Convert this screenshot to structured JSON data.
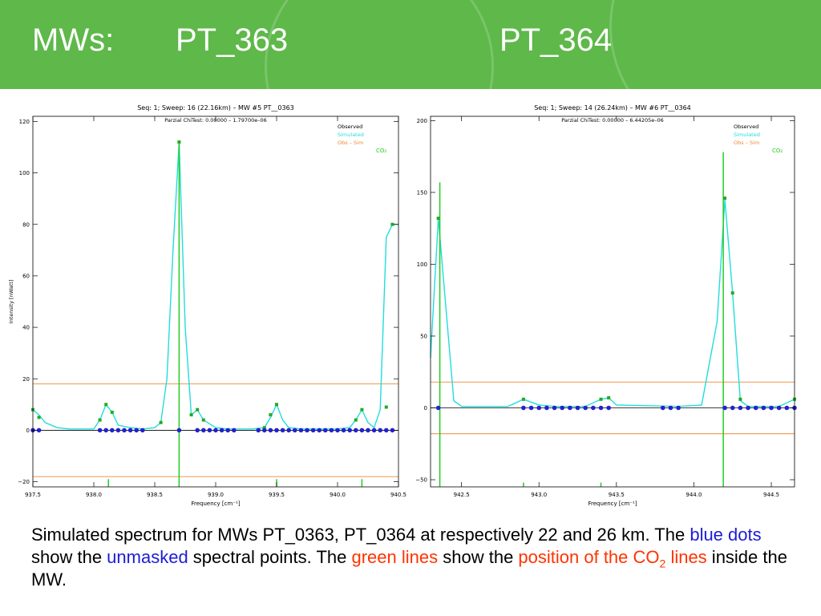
{
  "header": {
    "title_label": "MWs:",
    "title_left": "PT_363",
    "title_right": "PT_364",
    "background": "#5eb84a"
  },
  "caption": {
    "part1": "Simulated spectrum for MWs PT_0363, PT_0364 at respectively 22 and 26 km. The ",
    "blue_dots": "blue dots",
    "part2": " show the ",
    "unmasked": "unmasked",
    "part3": " spectral points. The ",
    "green_lines": "green lines",
    "part4": " show the ",
    "position_of_the": "position of the CO",
    "sub2": "2",
    "lines": " lines",
    "part5": " inside the MW."
  },
  "chart_data": [
    {
      "type": "line",
      "title": "Seq: 1; Sweep: 16 (22.16km) – MW #5  PT__0363",
      "subtitle": "Parzial ChiTest: 0.00000 – 1.79700e–06",
      "xlabel": "Frequency [cm⁻¹]",
      "ylabel": "Intensity [nWatt]",
      "xlim": [
        937.5,
        940.5
      ],
      "ylim": [
        -22,
        122
      ],
      "xticks": [
        937.5,
        938.0,
        938.5,
        939.0,
        939.5,
        940.0,
        940.5
      ],
      "xtick_labels": [
        "937.5",
        "938.0",
        "938.5",
        "939.0",
        "939.5",
        "940.0",
        "940.5"
      ],
      "yticks": [
        -20,
        0,
        20,
        40,
        60,
        80,
        100,
        120
      ],
      "ytick_labels": [
        "−20",
        "0",
        "20",
        "40",
        "60",
        "80",
        "100",
        "120"
      ],
      "legend": [
        "Observed",
        "Simulated",
        "Obs – Sim",
        "CO₂"
      ],
      "legend_position": "top-right",
      "colors": {
        "observed": "#22aa22",
        "simulated": "#22dddd",
        "diff": "#ee8833",
        "unmasked": "#2222cc",
        "co2": "#22cc22"
      },
      "hlines": [
        18,
        -18
      ],
      "simulated": {
        "x": [
          937.5,
          937.55,
          937.6,
          937.7,
          937.8,
          937.9,
          938.0,
          938.05,
          938.1,
          938.15,
          938.2,
          938.3,
          938.4,
          938.5,
          938.55,
          938.6,
          938.65,
          938.7,
          938.75,
          938.8,
          938.85,
          938.9,
          939.0,
          939.1,
          939.2,
          939.3,
          939.4,
          939.45,
          939.5,
          939.55,
          939.6,
          939.7,
          939.8,
          939.9,
          940.0,
          940.1,
          940.15,
          940.2,
          940.25,
          940.3,
          940.35,
          940.4,
          940.45,
          940.5
        ],
        "y": [
          8,
          6,
          3,
          1,
          0.5,
          0.5,
          0.5,
          4,
          10,
          7,
          2,
          1,
          0.5,
          1,
          3,
          20,
          70,
          112,
          40,
          6,
          8,
          4,
          1,
          0.5,
          0.5,
          0.5,
          1,
          5,
          10,
          4,
          1,
          0.5,
          0.5,
          0.5,
          0.5,
          1,
          4,
          8,
          3,
          1,
          8,
          75,
          80,
          80
        ]
      },
      "observed_markers": {
        "x": [
          937.5,
          937.55,
          938.05,
          938.1,
          938.15,
          938.55,
          938.7,
          938.8,
          938.85,
          938.9,
          939.4,
          939.45,
          939.5,
          940.15,
          940.2,
          940.4,
          940.45
        ],
        "y": [
          8,
          5,
          4,
          10,
          7,
          3,
          112,
          6,
          8,
          4,
          1,
          6,
          10,
          4,
          8,
          9,
          80
        ]
      },
      "unmasked_points": {
        "x": [
          937.5,
          937.55,
          938.05,
          938.1,
          938.15,
          938.2,
          938.25,
          938.3,
          938.35,
          938.4,
          938.7,
          938.85,
          938.9,
          938.95,
          939.0,
          939.05,
          939.1,
          939.15,
          939.35,
          939.4,
          939.45,
          939.5,
          939.55,
          939.6,
          939.65,
          939.7,
          939.75,
          939.8,
          939.85,
          939.9,
          939.95,
          940.0,
          940.05,
          940.1,
          940.15,
          940.2,
          940.25,
          940.3,
          940.35,
          940.4,
          940.45
        ],
        "y": [
          0,
          0,
          0,
          0,
          0,
          0,
          0,
          0,
          0,
          0,
          0,
          0,
          0,
          0,
          0,
          0,
          0,
          0,
          0,
          0,
          0,
          0,
          0,
          0,
          0,
          0,
          0,
          0,
          0,
          0,
          0,
          0,
          0,
          0,
          0,
          0,
          0,
          0,
          0,
          0,
          0
        ]
      },
      "co2_lines": [
        {
          "x": 938.7,
          "ymin": -22,
          "ymax": 112
        },
        {
          "x": 938.12,
          "ymin": -22,
          "ymax": -19
        },
        {
          "x": 939.5,
          "ymin": -22,
          "ymax": -19
        },
        {
          "x": 940.2,
          "ymin": -22,
          "ymax": -19
        }
      ]
    },
    {
      "type": "line",
      "title": "Seq: 1; Sweep: 14 (26.24km) – MW #6  PT__0364",
      "subtitle": "Parzial ChiTest: 0.00000 – 6.44205e–06",
      "xlabel": "Frequency [cm⁻¹]",
      "ylabel": "",
      "xlim": [
        942.3,
        944.65
      ],
      "ylim": [
        -55,
        203
      ],
      "xticks": [
        942.5,
        943.0,
        943.5,
        944.0,
        944.5
      ],
      "xtick_labels": [
        "942.5",
        "943.0",
        "943.5",
        "944.0",
        "944.5"
      ],
      "yticks": [
        -50,
        0,
        50,
        100,
        150,
        200
      ],
      "ytick_labels": [
        "−50",
        "0",
        "50",
        "100",
        "150",
        "200"
      ],
      "legend": [
        "Observed",
        "Simulated",
        "Obs – Sim",
        "CO₂"
      ],
      "legend_position": "top-right",
      "colors": {
        "observed": "#22aa22",
        "simulated": "#22dddd",
        "diff": "#ee8833",
        "unmasked": "#2222cc",
        "co2": "#22cc22"
      },
      "hlines": [
        18,
        -18
      ],
      "simulated": {
        "x": [
          942.3,
          942.35,
          942.45,
          942.5,
          942.8,
          942.9,
          943.0,
          943.1,
          943.3,
          943.4,
          943.45,
          943.5,
          943.9,
          944.05,
          944.15,
          944.2,
          944.25,
          944.3,
          944.35,
          944.45,
          944.55,
          944.65
        ],
        "y": [
          35,
          132,
          5,
          1,
          1,
          6,
          2,
          1,
          1,
          6,
          7,
          2,
          1,
          2,
          60,
          145,
          80,
          5,
          1,
          1,
          1,
          6
        ]
      },
      "observed_markers": {
        "x": [
          942.35,
          942.9,
          943.4,
          943.45,
          944.2,
          944.25,
          944.3,
          944.65
        ],
        "y": [
          132,
          6,
          6,
          7,
          146,
          80,
          6,
          6
        ]
      },
      "unmasked_points": {
        "x": [
          942.35,
          942.9,
          942.95,
          943.0,
          943.05,
          943.1,
          943.15,
          943.2,
          943.25,
          943.3,
          943.35,
          943.4,
          943.45,
          943.8,
          943.85,
          943.9,
          944.2,
          944.25,
          944.3,
          944.35,
          944.4,
          944.45,
          944.5,
          944.55,
          944.6,
          944.65
        ],
        "y": [
          0,
          0,
          0,
          0,
          0,
          0,
          0,
          0,
          0,
          0,
          0,
          0,
          0,
          0,
          0,
          0,
          0,
          0,
          0,
          0,
          0,
          0,
          0,
          0,
          0,
          0
        ]
      },
      "co2_lines": [
        {
          "x": 942.36,
          "ymin": -55,
          "ymax": 157
        },
        {
          "x": 944.19,
          "ymin": -55,
          "ymax": 178
        },
        {
          "x": 942.9,
          "ymin": -55,
          "ymax": -52
        },
        {
          "x": 943.4,
          "ymin": -55,
          "ymax": -52
        }
      ]
    }
  ]
}
